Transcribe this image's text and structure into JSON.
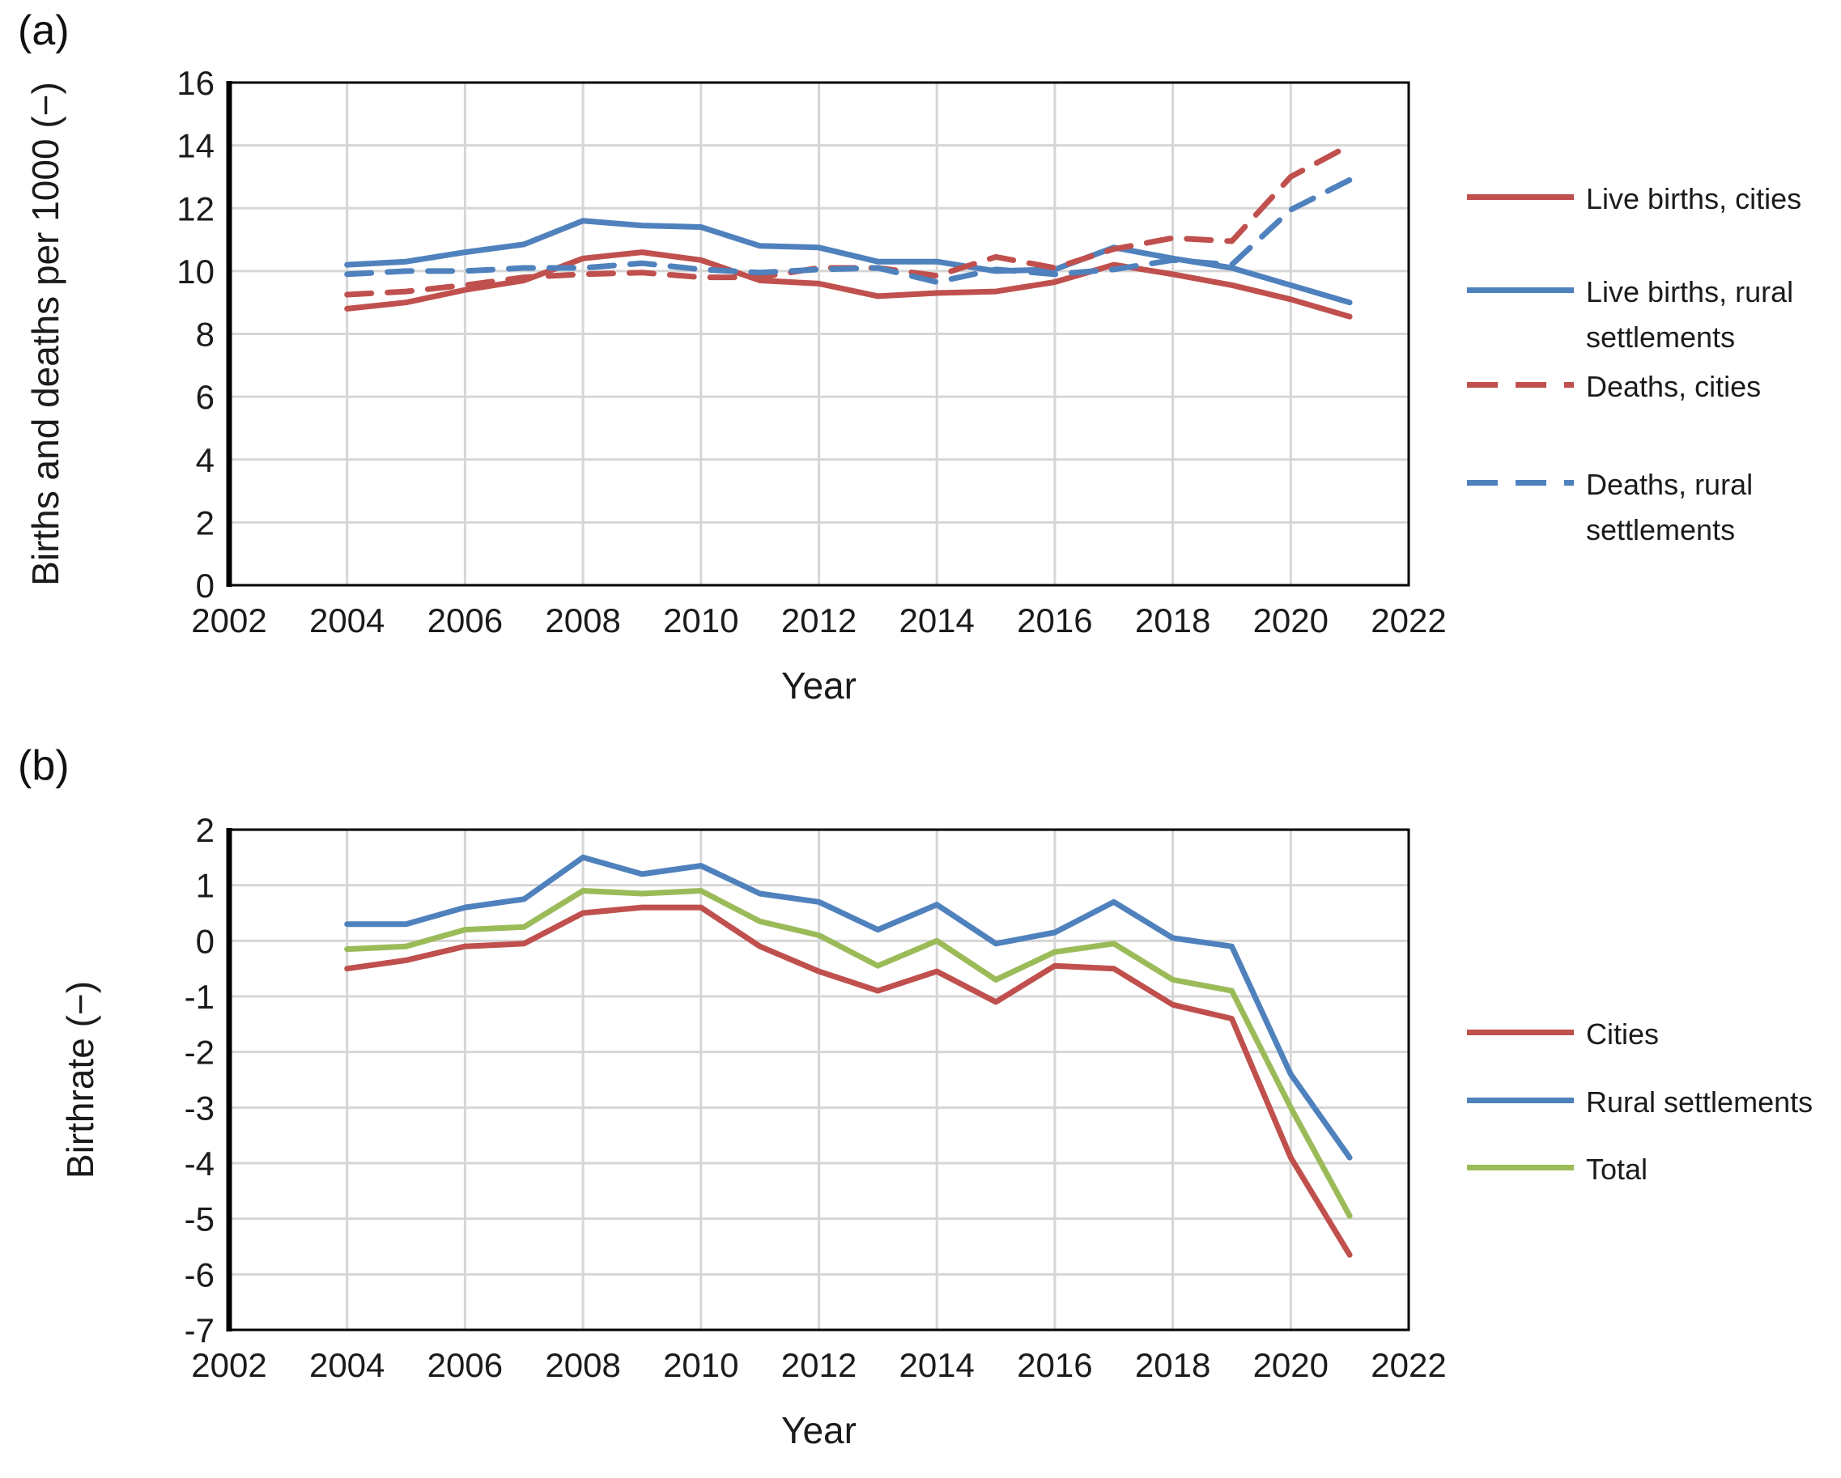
{
  "panels": [
    {
      "tag": "(a)"
    },
    {
      "tag": "(b)"
    }
  ],
  "chart_data": [
    {
      "type": "line",
      "title": "",
      "xlabel": "Year",
      "ylabel": "Births and deaths per 1000 (−)",
      "xlim": [
        2002,
        2022
      ],
      "ylim": [
        0,
        16
      ],
      "xticks": [
        2002,
        2004,
        2006,
        2008,
        2010,
        2012,
        2014,
        2016,
        2018,
        2020,
        2022
      ],
      "yticks": [
        0,
        2,
        4,
        6,
        8,
        10,
        12,
        14,
        16
      ],
      "grid": true,
      "legend_position": "right",
      "x": [
        2004,
        2005,
        2006,
        2007,
        2008,
        2009,
        2010,
        2011,
        2012,
        2013,
        2014,
        2015,
        2016,
        2017,
        2018,
        2019,
        2020,
        2021
      ],
      "series": [
        {
          "name": "Live births, cities",
          "color": "#C0504D",
          "dash": "solid",
          "values": [
            8.8,
            9.0,
            9.4,
            9.7,
            10.4,
            10.6,
            10.35,
            9.7,
            9.6,
            9.2,
            9.3,
            9.35,
            9.65,
            10.2,
            9.9,
            9.55,
            9.1,
            8.55
          ]
        },
        {
          "name": "Live births, rural settlements",
          "color": "#4F81BD",
          "dash": "solid",
          "values": [
            10.2,
            10.3,
            10.6,
            10.85,
            11.6,
            11.45,
            11.4,
            10.8,
            10.75,
            10.3,
            10.3,
            10.0,
            10.05,
            10.75,
            10.4,
            10.1,
            9.55,
            9.0
          ]
        },
        {
          "name": "Deaths, cities",
          "color": "#C0504D",
          "dash": "dashed",
          "values": [
            9.25,
            9.35,
            9.55,
            9.8,
            9.9,
            9.95,
            9.8,
            9.8,
            10.1,
            10.1,
            9.85,
            10.45,
            10.1,
            10.7,
            11.05,
            10.95,
            13.0,
            14.0
          ]
        },
        {
          "name": "Deaths, rural settlements",
          "color": "#4F81BD",
          "dash": "dashed",
          "values": [
            9.9,
            10.0,
            10.0,
            10.1,
            10.1,
            10.25,
            10.05,
            9.95,
            10.05,
            10.1,
            9.65,
            10.05,
            9.9,
            10.05,
            10.35,
            10.2,
            11.95,
            12.9
          ]
        }
      ]
    },
    {
      "type": "line",
      "title": "",
      "xlabel": "Year",
      "ylabel": "Birthrate (−)",
      "xlim": [
        2002,
        2022
      ],
      "ylim": [
        -7,
        2
      ],
      "xticks": [
        2002,
        2004,
        2006,
        2008,
        2010,
        2012,
        2014,
        2016,
        2018,
        2020,
        2022
      ],
      "yticks": [
        -7,
        -6,
        -5,
        -4,
        -3,
        -2,
        -1,
        0,
        1,
        2
      ],
      "grid": true,
      "legend_position": "right",
      "x": [
        2004,
        2005,
        2006,
        2007,
        2008,
        2009,
        2010,
        2011,
        2012,
        2013,
        2014,
        2015,
        2016,
        2017,
        2018,
        2019,
        2020,
        2021
      ],
      "series": [
        {
          "name": "Cities",
          "color": "#C0504D",
          "dash": "solid",
          "values": [
            -0.5,
            -0.35,
            -0.1,
            -0.05,
            0.5,
            0.6,
            0.6,
            -0.1,
            -0.55,
            -0.9,
            -0.55,
            -1.1,
            -0.45,
            -0.5,
            -1.15,
            -1.4,
            -3.9,
            -5.65
          ]
        },
        {
          "name": "Rural settlements",
          "color": "#4F81BD",
          "dash": "solid",
          "values": [
            0.3,
            0.3,
            0.6,
            0.75,
            1.5,
            1.2,
            1.35,
            0.85,
            0.7,
            0.2,
            0.65,
            -0.05,
            0.15,
            0.7,
            0.05,
            -0.1,
            -2.4,
            -3.9
          ]
        },
        {
          "name": "Total",
          "color": "#9BBB59",
          "dash": "solid",
          "values": [
            -0.15,
            -0.1,
            0.2,
            0.25,
            0.9,
            0.85,
            0.9,
            0.35,
            0.1,
            -0.45,
            0.0,
            -0.7,
            -0.2,
            -0.05,
            -0.7,
            -0.9,
            -3.0,
            -4.95
          ]
        }
      ]
    }
  ]
}
